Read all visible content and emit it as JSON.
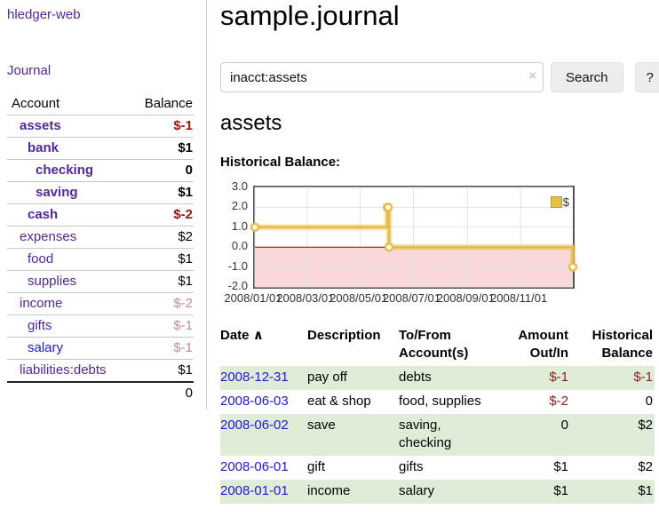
{
  "app": {
    "brand": "hledger-web"
  },
  "colors": {
    "accent_purple": "#53279d",
    "link_blue": "#2018d8",
    "negative_strong": "#a31212",
    "negative_table": "#8f1d1d",
    "negative_soft": "#bd8f8f",
    "row_green": "#dfecd8",
    "chart_line_yellow": "#e6bd4a",
    "chart_negative_region": "#f8d8d8",
    "chart_zero_line": "#990000"
  },
  "sidebar": {
    "journal_label": "Journal",
    "accounts_table": {
      "headers": [
        "Account",
        "Balance"
      ],
      "rows": [
        {
          "account": "assets",
          "balance": "$-1"
        },
        {
          "account": "bank",
          "balance": "$1"
        },
        {
          "account": "checking",
          "balance": "0"
        },
        {
          "account": "saving",
          "balance": "$1"
        },
        {
          "account": "cash",
          "balance": "$-2"
        },
        {
          "account": "expenses",
          "balance": "$2"
        },
        {
          "account": "food",
          "balance": "$1"
        },
        {
          "account": "supplies",
          "balance": "$1"
        },
        {
          "account": "income",
          "balance": "$-2"
        },
        {
          "account": "gifts",
          "balance": "$-1"
        },
        {
          "account": "salary",
          "balance": "$-1"
        },
        {
          "account": "liabilities:debts",
          "balance": "$1"
        }
      ],
      "total": "0"
    }
  },
  "main": {
    "title": "sample.journal",
    "search": {
      "value": "inacct:assets",
      "clear_icon": "×",
      "search_label": "Search",
      "help_label": "?"
    },
    "section_title": "assets",
    "chart_label": "Historical Balance:"
  },
  "chart_data": {
    "type": "line",
    "step": true,
    "title": "Historical Balance:",
    "series": [
      {
        "name": "$",
        "color": "#e6bd4a",
        "points": [
          [
            "2008-01-01",
            1
          ],
          [
            "2008-06-01",
            2
          ],
          [
            "2008-06-02",
            2
          ],
          [
            "2008-06-03",
            0
          ],
          [
            "2008-12-31",
            -1
          ]
        ]
      }
    ],
    "x_range": [
      "2008-01-01",
      "2008-12-31"
    ],
    "x_ticks": [
      {
        "date": "2008-01-01",
        "label": "2008/01/01"
      },
      {
        "date": "2008-03-01",
        "label": "2008/03/01"
      },
      {
        "date": "2008-05-01",
        "label": "2008/05/01"
      },
      {
        "date": "2008-07-01",
        "label": "2008/07/01"
      },
      {
        "date": "2008-09-01",
        "label": "2008/09/01"
      },
      {
        "date": "2008-11-01",
        "label": "2008/11/01"
      }
    ],
    "y_ticks": [
      3.0,
      2.0,
      1.0,
      0.0,
      -1.0,
      -2.0
    ],
    "ylim": [
      -2,
      3
    ],
    "grid": true,
    "legend": {
      "label": "$",
      "position": "top-right"
    },
    "negative_region_below": 0
  },
  "register": {
    "headers": [
      "Date",
      "Description",
      "To/From Account(s)",
      "Amount Out/In",
      "Historical Balance"
    ],
    "sort_icon": "∧",
    "rows": [
      {
        "date": "2008-12-31",
        "description": "pay off",
        "accounts": "debts",
        "amount": "$-1",
        "balance": "$-1"
      },
      {
        "date": "2008-06-03",
        "description": "eat & shop",
        "accounts": "food, supplies",
        "amount": "$-2",
        "balance": "0"
      },
      {
        "date": "2008-06-02",
        "description": "save",
        "accounts": "saving, checking",
        "amount": "0",
        "balance": "$2"
      },
      {
        "date": "2008-06-01",
        "description": "gift",
        "accounts": "gifts",
        "amount": "$1",
        "balance": "$2"
      },
      {
        "date": "2008-01-01",
        "description": "income",
        "accounts": "salary",
        "amount": "$1",
        "balance": "$1"
      }
    ]
  }
}
